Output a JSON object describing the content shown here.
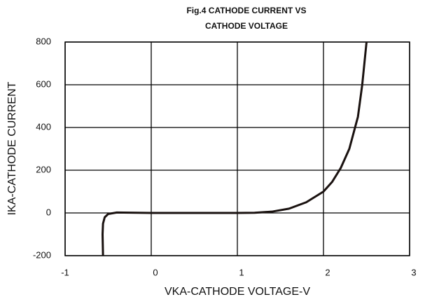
{
  "chart_data": {
    "type": "line",
    "title": [
      "Fig.4  CATHODE CURRENT VS",
      "CATHODE VOLTAGE"
    ],
    "xlabel": "VKA-CATHODE VOLTAGE-V",
    "ylabel": "IKA-CATHODE CURRENT",
    "x": [
      -0.56,
      -0.565,
      -0.56,
      -0.54,
      -0.5,
      -0.4,
      0,
      1,
      1.2,
      1.4,
      1.6,
      1.8,
      2.0,
      2.1,
      2.2,
      2.3,
      2.4,
      2.45,
      2.5
    ],
    "series": [
      {
        "name": "IKA",
        "color": "#1a1210",
        "values": [
          -200,
          -100,
          -50,
          -20,
          -5,
          2,
          0,
          0,
          1,
          6,
          20,
          50,
          100,
          145,
          210,
          300,
          450,
          600,
          800
        ]
      }
    ],
    "xlim": [
      -1,
      3
    ],
    "xticks": [
      -1,
      0,
      1,
      2,
      3
    ],
    "ylim": [
      -200,
      800
    ],
    "yticks": [
      -200,
      0,
      200,
      400,
      600,
      800
    ],
    "grid": true
  }
}
